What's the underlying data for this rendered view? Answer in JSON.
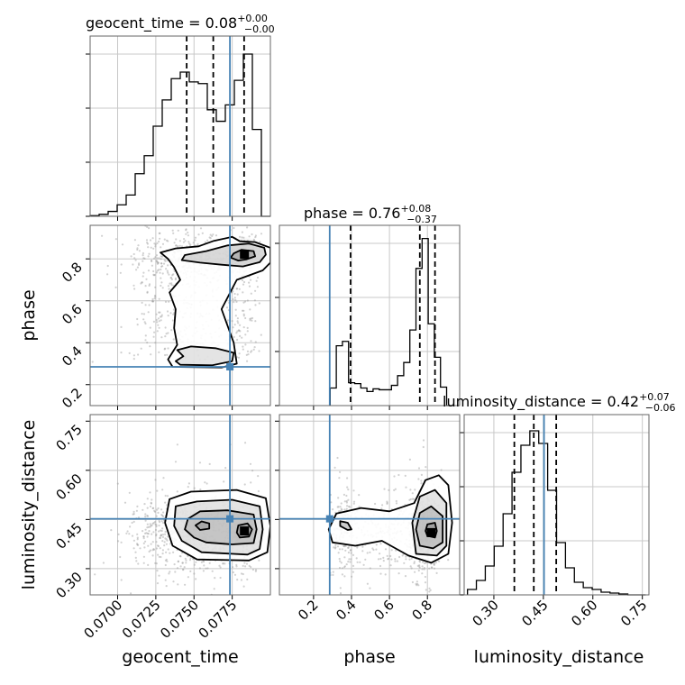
{
  "chart_data": {
    "type": "corner",
    "parameters": [
      "geocent_time",
      "phase",
      "luminosity_distance"
    ],
    "truth": {
      "geocent_time": 0.07735,
      "phase": 0.285,
      "luminosity_distance": 0.452
    },
    "colors": {
      "truth": "#4682b4",
      "hist": "#000000",
      "grid": "#c8c8c8",
      "scatter": "#9a9a9a"
    },
    "diagonals": [
      {
        "param": "geocent_time",
        "title": "geocent_time = 0.08",
        "title_sup": "+0.00",
        "title_sub": "−0.00",
        "range": [
          0.0682,
          0.08
        ],
        "ticks": [
          0.07,
          0.0725,
          0.075,
          0.0775
        ],
        "tick_labels": [
          "0.0700",
          "0.0725",
          "0.0750",
          "0.0775"
        ],
        "xlabel": "geocent_time",
        "edges": [
          0.0682,
          0.06879,
          0.06938,
          0.06997,
          0.07056,
          0.07115,
          0.07174,
          0.07233,
          0.07292,
          0.07351,
          0.0741,
          0.07469,
          0.07528,
          0.07587,
          0.07646,
          0.07705,
          0.07764,
          0.07823,
          0.07882,
          0.07941,
          0.08
        ],
        "counts": [
          0.004,
          0.012,
          0.03,
          0.07,
          0.13,
          0.26,
          0.37,
          0.55,
          0.71,
          0.84,
          0.88,
          0.82,
          0.81,
          0.65,
          0.58,
          0.68,
          0.83,
          0.99,
          0.53,
          0.0
        ],
        "ylim": [
          0,
          1.1
        ],
        "quantiles": [
          0.07452,
          0.07626,
          0.07828
        ]
      },
      {
        "param": "phase",
        "title": "phase = 0.76",
        "title_sup": "+0.08",
        "title_sub": "−0.37",
        "range": [
          0.02,
          0.97
        ],
        "ticks": [
          0.2,
          0.4,
          0.6,
          0.8
        ],
        "tick_labels": [
          "0.2",
          "0.4",
          "0.6",
          "0.8"
        ],
        "xlabel": "phase",
        "edges": [
          0.2875,
          0.3198,
          0.3521,
          0.3844,
          0.4167,
          0.449,
          0.4813,
          0.5136,
          0.5459,
          0.5782,
          0.6105,
          0.6428,
          0.6751,
          0.7074,
          0.7397,
          0.772,
          0.8043,
          0.8366,
          0.8689,
          0.9012,
          0.9335
        ],
        "counts": [
          0.2,
          0.68,
          0.73,
          0.26,
          0.25,
          0.2,
          0.16,
          0.19,
          0.18,
          0.18,
          0.23,
          0.34,
          0.49,
          0.86,
          1.56,
          1.9,
          0.93,
          0.55,
          0.21,
          0.0
        ],
        "ylim": [
          0,
          2.05
        ],
        "quantiles": [
          0.395,
          0.76,
          0.84
        ]
      },
      {
        "param": "luminosity_distance",
        "title": "luminosity_distance = 0.42",
        "title_sup": "+0.07",
        "title_sub": "−0.06",
        "range": [
          0.21,
          0.77
        ],
        "ticks": [
          0.3,
          0.45,
          0.6,
          0.75
        ],
        "tick_labels": [
          "0.30",
          "0.45",
          "0.60",
          "0.75"
        ],
        "xlabel": "luminosity_distance",
        "edges": [
          0.22,
          0.247,
          0.274,
          0.301,
          0.328,
          0.355,
          0.382,
          0.409,
          0.436,
          0.463,
          0.49,
          0.517,
          0.544,
          0.571,
          0.598,
          0.625,
          0.652,
          0.679,
          0.706,
          0.733,
          0.76
        ],
        "counts": [
          0.03,
          0.08,
          0.16,
          0.27,
          0.45,
          0.68,
          0.83,
          0.91,
          0.84,
          0.58,
          0.29,
          0.15,
          0.07,
          0.04,
          0.03,
          0.015,
          0.01,
          0.005,
          0.0,
          0.0
        ],
        "ylim": [
          0,
          1.0
        ],
        "quantiles": [
          0.362,
          0.421,
          0.489
        ]
      }
    ],
    "pairs": [
      {
        "x": "geocent_time",
        "y": "phase",
        "ylabel": "phase",
        "yrange": [
          0.1,
          0.96
        ],
        "yticks": [
          0.2,
          0.4,
          0.6,
          0.8
        ],
        "ytick_labels": [
          "0.2",
          "0.4",
          "0.6",
          "0.8"
        ],
        "density_peak": [
          0.0783,
          0.822
        ],
        "contours": [
          [
            [
              0.0779,
              0.792
            ],
            [
              0.0784,
              0.797
            ],
            [
              0.079,
              0.812
            ],
            [
              0.0789,
              0.837
            ],
            [
              0.0781,
              0.843
            ],
            [
              0.0776,
              0.826
            ],
            [
              0.0774,
              0.806
            ]
          ],
          [
            [
              0.0768,
              0.772
            ],
            [
              0.0782,
              0.764
            ],
            [
              0.0793,
              0.784
            ],
            [
              0.0797,
              0.82
            ],
            [
              0.0796,
              0.853
            ],
            [
              0.0786,
              0.873
            ],
            [
              0.0772,
              0.864
            ],
            [
              0.0758,
              0.837
            ],
            [
              0.0744,
              0.818
            ],
            [
              0.0742,
              0.794
            ],
            [
              0.0754,
              0.782
            ]
          ],
          [
            [
              0.0741,
              0.295
            ],
            [
              0.0762,
              0.292
            ],
            [
              0.0775,
              0.312
            ],
            [
              0.0776,
              0.352
            ],
            [
              0.0764,
              0.374
            ],
            [
              0.0748,
              0.382
            ],
            [
              0.0739,
              0.365
            ],
            [
              0.0743,
              0.335
            ],
            [
              0.0738,
              0.312
            ]
          ],
          [
            [
              0.0736,
              0.285
            ],
            [
              0.0768,
              0.282
            ],
            [
              0.0778,
              0.3
            ],
            [
              0.0776,
              0.4
            ],
            [
              0.0768,
              0.56
            ],
            [
              0.0778,
              0.7
            ],
            [
              0.0795,
              0.745
            ],
            [
              0.08,
              0.782
            ],
            [
              0.08,
              0.853
            ],
            [
              0.079,
              0.88
            ],
            [
              0.078,
              0.884
            ],
            [
              0.0775,
              0.905
            ],
            [
              0.0763,
              0.886
            ],
            [
              0.0753,
              0.86
            ],
            [
              0.0738,
              0.85
            ],
            [
              0.0728,
              0.83
            ],
            [
              0.0733,
              0.8
            ],
            [
              0.0737,
              0.76
            ],
            [
              0.0741,
              0.7
            ],
            [
              0.0734,
              0.64
            ],
            [
              0.0738,
              0.56
            ],
            [
              0.0737,
              0.47
            ],
            [
              0.0739,
              0.39
            ],
            [
              0.0733,
              0.32
            ]
          ]
        ]
      },
      {
        "x": "geocent_time",
        "y": "luminosity_distance",
        "ylabel": "luminosity_distance",
        "yrange": [
          0.22,
          0.77
        ],
        "yticks": [
          0.3,
          0.45,
          0.6,
          0.75
        ],
        "ytick_labels": [
          "0.30",
          "0.45",
          "0.60",
          "0.75"
        ],
        "density_peak": [
          0.0783,
          0.415
        ],
        "contours": [
          [
            [
              0.078,
              0.395
            ],
            [
              0.0786,
              0.398
            ],
            [
              0.0788,
              0.42
            ],
            [
              0.0785,
              0.438
            ],
            [
              0.0779,
              0.432
            ],
            [
              0.0778,
              0.41
            ]
          ],
          [
            [
              0.0754,
              0.418
            ],
            [
              0.076,
              0.422
            ],
            [
              0.076,
              0.438
            ],
            [
              0.0755,
              0.444
            ],
            [
              0.0751,
              0.432
            ]
          ],
          [
            [
              0.0758,
              0.38
            ],
            [
              0.0775,
              0.374
            ],
            [
              0.0789,
              0.378
            ],
            [
              0.0791,
              0.42
            ],
            [
              0.0789,
              0.465
            ],
            [
              0.0772,
              0.478
            ],
            [
              0.0754,
              0.475
            ],
            [
              0.0746,
              0.452
            ],
            [
              0.0744,
              0.42
            ],
            [
              0.075,
              0.395
            ]
          ],
          [
            [
              0.0755,
              0.35
            ],
            [
              0.0785,
              0.343
            ],
            [
              0.0793,
              0.36
            ],
            [
              0.0795,
              0.42
            ],
            [
              0.0793,
              0.49
            ],
            [
              0.0775,
              0.51
            ],
            [
              0.0752,
              0.505
            ],
            [
              0.0738,
              0.49
            ],
            [
              0.0737,
              0.43
            ],
            [
              0.0742,
              0.385
            ]
          ],
          [
            [
              0.0752,
              0.328
            ],
            [
              0.0786,
              0.325
            ],
            [
              0.0798,
              0.35
            ],
            [
              0.08,
              0.43
            ],
            [
              0.0797,
              0.515
            ],
            [
              0.0778,
              0.54
            ],
            [
              0.0748,
              0.535
            ],
            [
              0.0734,
              0.512
            ],
            [
              0.0731,
              0.44
            ],
            [
              0.0736,
              0.37
            ]
          ]
        ]
      },
      {
        "x": "phase",
        "y": "luminosity_distance",
        "ylabel": "luminosity_distance",
        "yrange": [
          0.22,
          0.77
        ],
        "yticks": [
          0.3,
          0.45,
          0.6,
          0.75
        ],
        "ytick_labels": [
          "0.30",
          "0.45",
          "0.60",
          "0.75"
        ],
        "density_peak": [
          0.82,
          0.41
        ],
        "contours": [
          [
            [
              0.8,
              0.4
            ],
            [
              0.84,
              0.395
            ],
            [
              0.85,
              0.415
            ],
            [
              0.84,
              0.44
            ],
            [
              0.8,
              0.435
            ],
            [
              0.79,
              0.415
            ]
          ],
          [
            [
              0.34,
              0.43
            ],
            [
              0.38,
              0.418
            ],
            [
              0.4,
              0.42
            ],
            [
              0.38,
              0.44
            ],
            [
              0.34,
              0.445
            ]
          ],
          [
            [
              0.76,
              0.37
            ],
            [
              0.83,
              0.362
            ],
            [
              0.88,
              0.38
            ],
            [
              0.88,
              0.46
            ],
            [
              0.82,
              0.49
            ],
            [
              0.76,
              0.47
            ],
            [
              0.74,
              0.42
            ]
          ],
          [
            [
              0.74,
              0.345
            ],
            [
              0.85,
              0.34
            ],
            [
              0.9,
              0.37
            ],
            [
              0.9,
              0.5
            ],
            [
              0.84,
              0.54
            ],
            [
              0.76,
              0.52
            ],
            [
              0.72,
              0.44
            ]
          ],
          [
            [
              0.3,
              0.38
            ],
            [
              0.42,
              0.37
            ],
            [
              0.56,
              0.385
            ],
            [
              0.7,
              0.34
            ],
            [
              0.82,
              0.318
            ],
            [
              0.91,
              0.345
            ],
            [
              0.93,
              0.44
            ],
            [
              0.91,
              0.555
            ],
            [
              0.86,
              0.585
            ],
            [
              0.79,
              0.57
            ],
            [
              0.73,
              0.5
            ],
            [
              0.6,
              0.475
            ],
            [
              0.45,
              0.485
            ],
            [
              0.32,
              0.468
            ],
            [
              0.28,
              0.42
            ]
          ]
        ]
      }
    ]
  }
}
